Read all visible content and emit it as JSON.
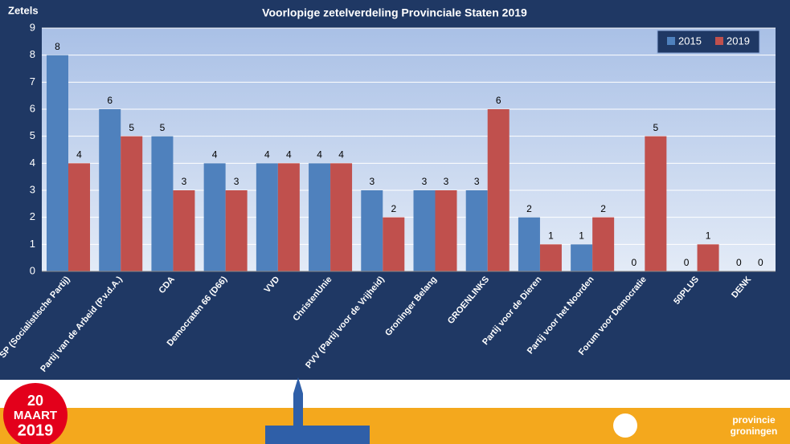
{
  "chart_data": {
    "type": "bar",
    "title": "Voorlopige zetelverdeling Provinciale Staten 2019",
    "y_label": "Zetels",
    "categories": [
      "SP (Socialistische Partij)",
      "Partij van de Arbeid (P.v.d.A.)",
      "CDA",
      "Democraten 66 (D66)",
      "VVD",
      "ChristenUnie",
      "PVV (Partij voor de Vrijheid)",
      "Groninger Belang",
      "GROENLINKS",
      "Partij voor de Dieren",
      "Partij voor het Noorden",
      "Forum voor Democratie",
      "50PLUS",
      "DENK"
    ],
    "series": [
      {
        "name": "2015",
        "color": "#4f81bd",
        "values": [
          8,
          6,
          5,
          4,
          4,
          4,
          3,
          3,
          3,
          2,
          1,
          0,
          0,
          0
        ]
      },
      {
        "name": "2019",
        "color": "#c0504d",
        "values": [
          4,
          5,
          3,
          3,
          4,
          4,
          2,
          3,
          6,
          1,
          2,
          5,
          1,
          0
        ]
      }
    ],
    "ylim": [
      0,
      9
    ],
    "yticks": [
      0,
      1,
      2,
      3,
      4,
      5,
      6,
      7,
      8,
      9
    ],
    "grid": true,
    "legend": "top-right"
  },
  "footer": {
    "day": "20",
    "month": "MAART",
    "year": "2019",
    "org": "provincie",
    "org_region": "groningen"
  }
}
